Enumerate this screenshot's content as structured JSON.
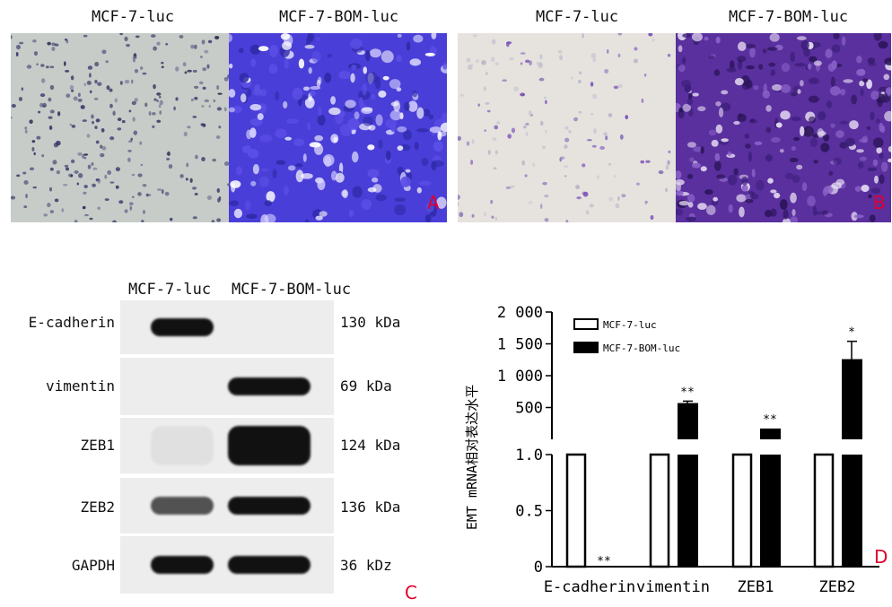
{
  "panelA": {
    "left_label": "MCF-7-luc",
    "right_label": "MCF-7-BOM-luc",
    "letter": "A"
  },
  "panelB": {
    "left_label": "MCF-7-luc",
    "right_label": "MCF-7-BOM-luc",
    "letter": "B"
  },
  "panelC": {
    "col_labels": [
      "MCF-7-luc",
      "MCF-7-BOM-luc"
    ],
    "rows": [
      {
        "protein": "E-cadherin",
        "size": "130 kDa"
      },
      {
        "protein": "vimentin",
        "size": "69 kDa"
      },
      {
        "protein": "ZEB1",
        "size": "124 kDa"
      },
      {
        "protein": "ZEB2",
        "size": "136 kDa"
      },
      {
        "protein": "GAPDH",
        "size": "36 kDz"
      }
    ],
    "band_intensity": [
      [
        1,
        0
      ],
      [
        0,
        1
      ],
      [
        0.05,
        1
      ],
      [
        0.7,
        1
      ],
      [
        1,
        1
      ]
    ],
    "letter": "C"
  },
  "colors": {
    "stain_purple": "#6a3fb8",
    "stain_blue": "#3e3fd6",
    "panel_letter": "#e0002a"
  },
  "chart_data": {
    "type": "bar",
    "title": "",
    "ylabel": "EMT mRNA相对表达水平",
    "xlabel": "",
    "categories": [
      "E-cadherin",
      "vimentin",
      "ZEB1",
      "ZEB2"
    ],
    "series": [
      {
        "name": "MCF-7-luc",
        "fill": "white",
        "values": [
          1.0,
          1.0,
          1.0,
          1.0
        ],
        "errors": [
          0,
          0,
          0,
          0
        ]
      },
      {
        "name": "MCF-7-BOM-luc",
        "fill": "black",
        "values": [
          0.0,
          570,
          170,
          1260
        ],
        "errors": [
          0,
          30,
          0,
          280
        ]
      }
    ],
    "significance": [
      {
        "category": "E-cadherin",
        "label": "**"
      },
      {
        "category": "vimentin",
        "label": "**"
      },
      {
        "category": "ZEB1",
        "label": "**"
      },
      {
        "category": "ZEB2",
        "label": "*"
      }
    ],
    "y_axis_broken": true,
    "lower_segment": {
      "ylim": [
        0,
        1.0
      ],
      "ticks": [
        "0",
        "0.5",
        "1.0"
      ]
    },
    "upper_segment": {
      "ylim": [
        0,
        2000
      ],
      "ticks": [
        "500",
        "1 000",
        "1 500",
        "2 000"
      ]
    },
    "legend": "top-left inside",
    "grid": false,
    "letter": "D"
  }
}
